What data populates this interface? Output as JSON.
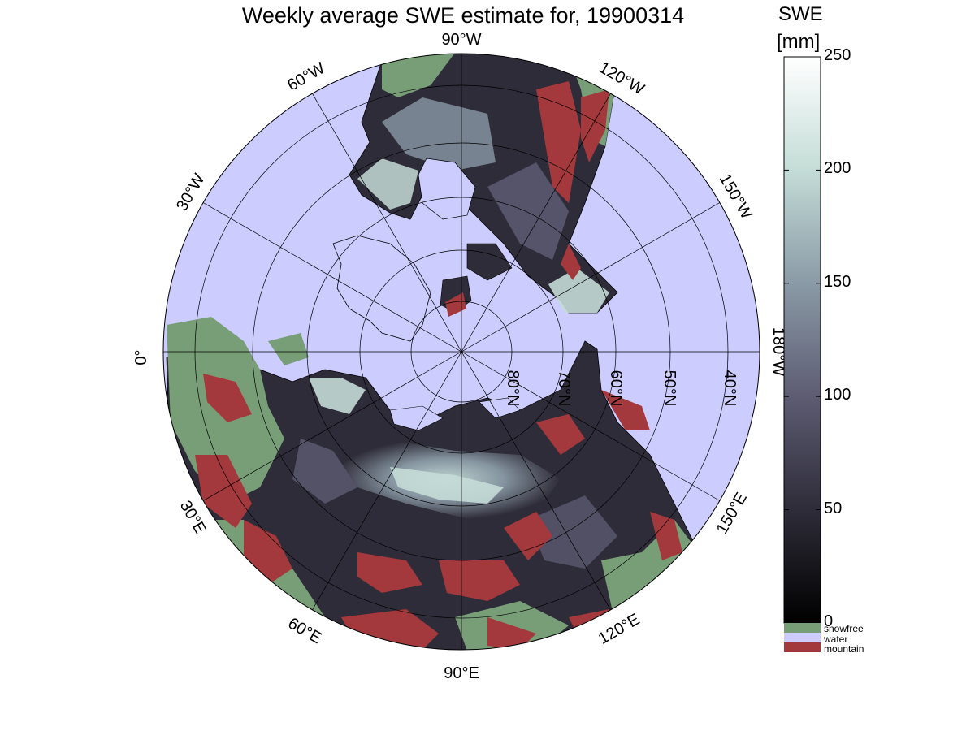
{
  "title": "Weekly average SWE estimate for, 19900314",
  "colorbar": {
    "label_line1": "SWE",
    "label_line2": "[mm]",
    "ticks": [
      {
        "value": 0,
        "label": "0"
      },
      {
        "value": 50,
        "label": "50"
      },
      {
        "value": 100,
        "label": "100"
      },
      {
        "value": 150,
        "label": "150"
      },
      {
        "value": 200,
        "label": "200"
      },
      {
        "value": 250,
        "label": "250"
      }
    ],
    "range": [
      0,
      250
    ],
    "colors": [
      "#000000",
      "#2e2c38",
      "#5d5c73",
      "#8a9aa6",
      "#c4dcd7",
      "#ffffff"
    ]
  },
  "legend": [
    {
      "label": "snowfree",
      "color": "#789e78"
    },
    {
      "label": "water",
      "color": "#ccccff"
    },
    {
      "label": "mountain",
      "color": "#a3393c"
    }
  ],
  "map": {
    "projection": "north polar stereographic",
    "latitude_labels": [
      "80°N",
      "70°N",
      "60°N",
      "50°N",
      "40°N"
    ],
    "longitude_labels": [
      "0°",
      "30°W",
      "60°W",
      "90°W",
      "120°W",
      "150°W",
      "180°W",
      "150°E",
      "120°E",
      "90°E",
      "60°E",
      "30°E"
    ]
  }
}
